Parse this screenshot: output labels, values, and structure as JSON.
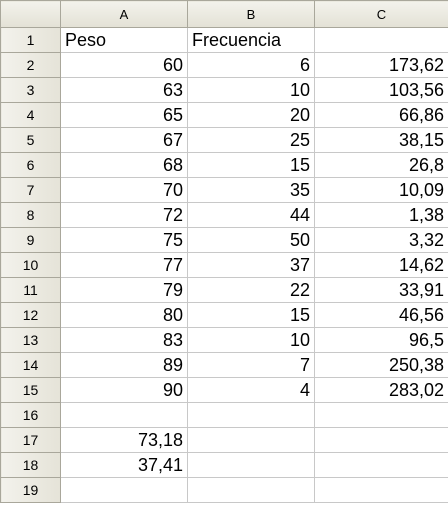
{
  "columns": [
    "A",
    "B",
    "C"
  ],
  "rows": [
    {
      "n": "1",
      "a": "Peso",
      "b": "Frecuencia",
      "c": ""
    },
    {
      "n": "2",
      "a": "60",
      "b": "6",
      "c": "173,62"
    },
    {
      "n": "3",
      "a": "63",
      "b": "10",
      "c": "103,56"
    },
    {
      "n": "4",
      "a": "65",
      "b": "20",
      "c": "66,86"
    },
    {
      "n": "5",
      "a": "67",
      "b": "25",
      "c": "38,15"
    },
    {
      "n": "6",
      "a": "68",
      "b": "15",
      "c": "26,8"
    },
    {
      "n": "7",
      "a": "70",
      "b": "35",
      "c": "10,09"
    },
    {
      "n": "8",
      "a": "72",
      "b": "44",
      "c": "1,38"
    },
    {
      "n": "9",
      "a": "75",
      "b": "50",
      "c": "3,32"
    },
    {
      "n": "10",
      "a": "77",
      "b": "37",
      "c": "14,62"
    },
    {
      "n": "11",
      "a": "79",
      "b": "22",
      "c": "33,91"
    },
    {
      "n": "12",
      "a": "80",
      "b": "15",
      "c": "46,56"
    },
    {
      "n": "13",
      "a": "83",
      "b": "10",
      "c": "96,5"
    },
    {
      "n": "14",
      "a": "89",
      "b": "7",
      "c": "250,38"
    },
    {
      "n": "15",
      "a": "90",
      "b": "4",
      "c": "283,02"
    },
    {
      "n": "16",
      "a": "",
      "b": "",
      "c": ""
    },
    {
      "n": "17",
      "a": "73,18",
      "b": "",
      "c": ""
    },
    {
      "n": "18",
      "a": "37,41",
      "b": "",
      "c": ""
    },
    {
      "n": "19",
      "a": "",
      "b": "",
      "c": ""
    }
  ]
}
